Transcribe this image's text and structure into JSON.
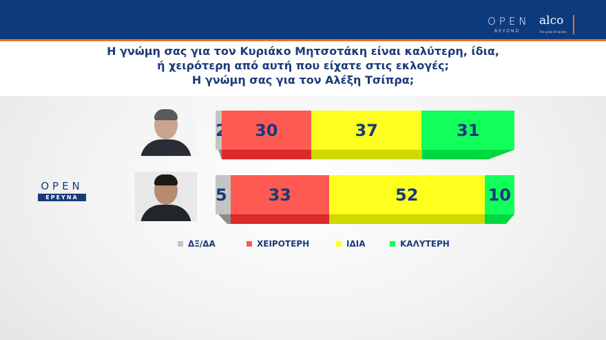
{
  "header": {
    "brand_open": "OPEN",
    "brand_beyond": "BEYOND",
    "brand_alco": "alco",
    "brand_alco_tagline": "The pulse of society"
  },
  "side_logo": {
    "open": "OPEN",
    "ereuna": "ΕΡΕΥΝΑ"
  },
  "chart_data": {
    "type": "bar",
    "orientation": "horizontal-stacked-100",
    "title": [
      "Η γνώμη σας για τον Κυριάκο Μητσοτάκη είναι καλύτερη, ίδια,",
      "ή χειρότερη από αυτή που είχατε στις εκλογές;",
      "Η γνώμη σας για τον Αλέξη Τσίπρα;"
    ],
    "categories": [
      "Κυριάκος Μητσοτάκης",
      "Αλέξης Τσίπρας"
    ],
    "series": [
      {
        "name": "ΔΞ/ΔΑ",
        "color": "#c4c4c4",
        "values": [
          2,
          5
        ]
      },
      {
        "name": "ΧΕΙΡΟΤΕΡΗ",
        "color": "#ff5a52",
        "values": [
          30,
          33
        ]
      },
      {
        "name": "ΙΔΙΑ",
        "color": "#ffff1e",
        "values": [
          37,
          52
        ]
      },
      {
        "name": "ΚΑΛΥΤΕΡΗ",
        "color": "#12fe5a",
        "values": [
          31,
          10
        ]
      }
    ],
    "under_colors": [
      "#8c8c8c",
      "#da2a2a",
      "#cfd800",
      "#00d840"
    ],
    "legend_position": "bottom",
    "label_color": "#1a3a7a"
  }
}
